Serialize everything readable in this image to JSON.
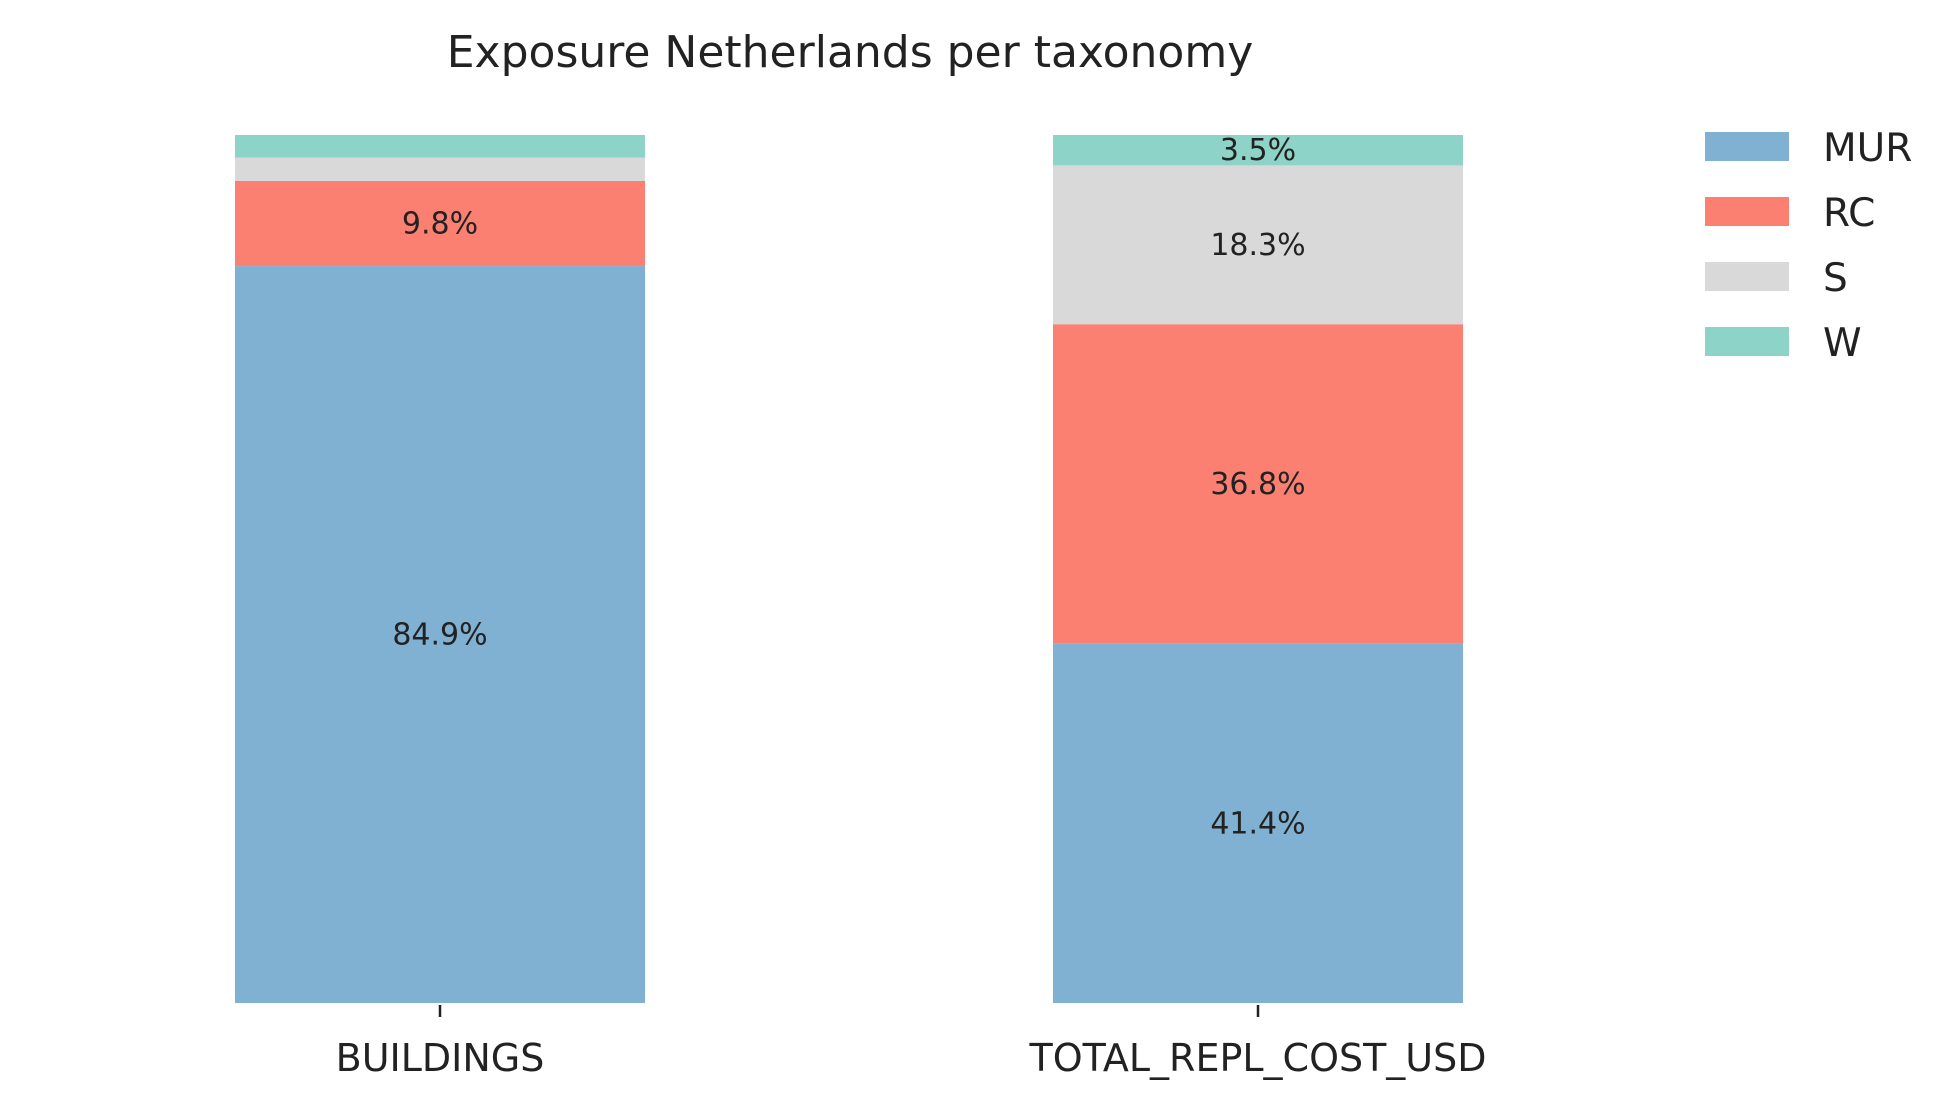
{
  "chart_data": {
    "type": "bar",
    "stacked": true,
    "title": "Exposure Netherlands per taxonomy",
    "categories": [
      "BUILDINGS",
      "TOTAL_REPL_COST_USD"
    ],
    "ylim": [
      0,
      100
    ],
    "unit": "%",
    "series": [
      {
        "name": "MUR",
        "color": "#80b1d3",
        "values": [
          84.9,
          41.4
        ],
        "labels": [
          "84.9%",
          "41.4%"
        ]
      },
      {
        "name": "RC",
        "color": "#fb8072",
        "values": [
          9.8,
          36.8
        ],
        "labels": [
          "9.8%",
          "36.8%"
        ]
      },
      {
        "name": "S",
        "color": "#d9d9d9",
        "values": [
          2.7,
          18.3
        ],
        "labels": [
          "",
          "18.3%"
        ]
      },
      {
        "name": "W",
        "color": "#8dd3c7",
        "values": [
          2.6,
          3.5
        ],
        "labels": [
          "",
          "3.5%"
        ]
      }
    ],
    "legend": {
      "position": "top-right"
    },
    "grid": false
  }
}
